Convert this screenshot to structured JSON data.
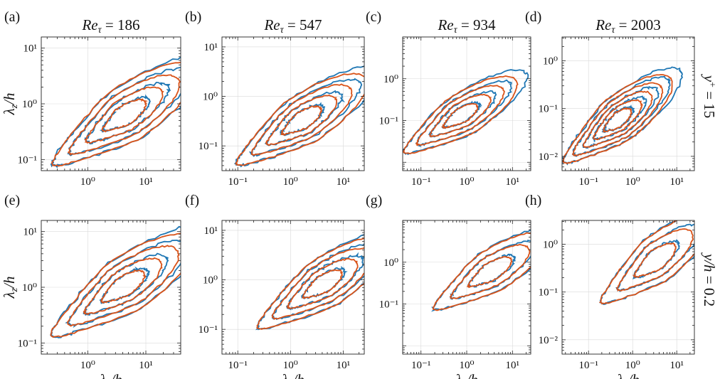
{
  "chart_data": {
    "type": "contour",
    "colors": {
      "blue": "#1f77b4",
      "orange": "#d95319"
    },
    "column_titles": [
      "Reτ = 186",
      "Reτ = 547",
      "Reτ = 934",
      "Reτ = 2003"
    ],
    "column_titles_parts": [
      {
        "main": "Re",
        "sub": "τ",
        "value": " = 186"
      },
      {
        "main": "Re",
        "sub": "τ",
        "value": " = 547"
      },
      {
        "main": "Re",
        "sub": "τ",
        "value": " = 934"
      },
      {
        "main": "Re",
        "sub": "τ",
        "value": " = 2003"
      }
    ],
    "row_labels": [
      {
        "main": "y",
        "sup": "+",
        "value": " = 15"
      },
      {
        "main": "y",
        "mid": "/h",
        "value": " = 0.2"
      }
    ],
    "xlabel": {
      "main": "λ",
      "sub": "x",
      "rest": "/h"
    },
    "ylabel": {
      "main": "λ",
      "sub": "z",
      "rest": "/h"
    },
    "panels": [
      {
        "label": "(a)",
        "xlim_log": [
          -0.8,
          1.6
        ],
        "ylim_log": [
          -1.2,
          1.2
        ],
        "xticks": [
          {
            "v": 0,
            "t": "10⁰"
          },
          {
            "v": 1,
            "t": "10¹"
          }
        ],
        "yticks": [
          {
            "v": -1,
            "t": "10⁻¹"
          },
          {
            "v": 0,
            "t": "10⁰"
          },
          {
            "v": 1,
            "t": "10¹"
          }
        ],
        "center": [
          0.62,
          -0.22
        ],
        "nlevels": 4
      },
      {
        "label": "(b)",
        "xlim_log": [
          -1.3,
          1.4
        ],
        "ylim_log": [
          -1.5,
          1.2
        ],
        "xticks": [
          {
            "v": -1,
            "t": "10⁻¹"
          },
          {
            "v": 0,
            "t": "10⁰"
          },
          {
            "v": 1,
            "t": "10¹"
          }
        ],
        "yticks": [
          {
            "v": -1,
            "t": "10⁻¹"
          },
          {
            "v": 0,
            "t": "10⁰"
          },
          {
            "v": 1,
            "t": "10¹"
          }
        ],
        "center": [
          0.2,
          -0.5
        ],
        "nlevels": 4
      },
      {
        "label": "(c)",
        "xlim_log": [
          -1.4,
          1.4
        ],
        "ylim_log": [
          -2.2,
          1.0
        ],
        "xticks": [
          {
            "v": -1,
            "t": "10⁻¹"
          },
          {
            "v": 0,
            "t": "10⁰"
          },
          {
            "v": 1,
            "t": "10¹"
          }
        ],
        "yticks": [
          {
            "v": -1,
            "t": "10⁻¹"
          },
          {
            "v": 0,
            "t": "10⁰"
          }
        ],
        "center": [
          -0.15,
          -0.9
        ],
        "nlevels": 4
      },
      {
        "label": "(d)",
        "xlim_log": [
          -1.6,
          1.4
        ],
        "ylim_log": [
          -2.3,
          0.5
        ],
        "xticks": [
          {
            "v": -1,
            "t": "10⁻¹"
          },
          {
            "v": 0,
            "t": "10⁰"
          },
          {
            "v": 1,
            "t": "10¹"
          }
        ],
        "yticks": [
          {
            "v": -2,
            "t": "10⁻²"
          },
          {
            "v": -1,
            "t": "10⁻¹"
          },
          {
            "v": 0,
            "t": "10⁰"
          }
        ],
        "center": [
          -0.35,
          -1.25
        ],
        "nlevels": 5
      },
      {
        "label": "(e)",
        "xlim_log": [
          -0.8,
          1.6
        ],
        "ylim_log": [
          -1.2,
          1.2
        ],
        "xticks": [
          {
            "v": 0,
            "t": "10⁰"
          },
          {
            "v": 1,
            "t": "10¹"
          }
        ],
        "yticks": [
          {
            "v": -1,
            "t": "10⁻¹"
          },
          {
            "v": 0,
            "t": "10⁰"
          },
          {
            "v": 1,
            "t": "10¹"
          }
        ],
        "center": [
          0.6,
          0.0
        ],
        "nlevels": 4
      },
      {
        "label": "(f)",
        "xlim_log": [
          -1.3,
          1.4
        ],
        "ylim_log": [
          -1.5,
          1.2
        ],
        "xticks": [
          {
            "v": -1,
            "t": "10⁻¹"
          },
          {
            "v": 0,
            "t": "10⁰"
          },
          {
            "v": 1,
            "t": "10¹"
          }
        ],
        "yticks": [
          {
            "v": -1,
            "t": "10⁻¹"
          },
          {
            "v": 0,
            "t": "10⁰"
          },
          {
            "v": 1,
            "t": "10¹"
          }
        ],
        "center": [
          0.6,
          -0.1
        ],
        "nlevels": 4
      },
      {
        "label": "(g)",
        "xlim_log": [
          -1.4,
          1.4
        ],
        "ylim_log": [
          -2.2,
          1.0
        ],
        "xticks": [
          {
            "v": -1,
            "t": "10⁻¹"
          },
          {
            "v": 0,
            "t": "10⁰"
          },
          {
            "v": 1,
            "t": "10¹"
          }
        ],
        "yticks": [
          {
            "v": -1,
            "t": "10⁻¹"
          },
          {
            "v": 0,
            "t": "10⁰"
          }
        ],
        "center": [
          0.5,
          -0.25
        ],
        "nlevels": 3
      },
      {
        "label": "(h)",
        "xlim_log": [
          -1.6,
          1.4
        ],
        "ylim_log": [
          -2.3,
          0.5
        ],
        "xticks": [
          {
            "v": -1,
            "t": "10⁻¹"
          },
          {
            "v": 0,
            "t": "10⁰"
          },
          {
            "v": 1,
            "t": "10¹"
          }
        ],
        "yticks": [
          {
            "v": -2,
            "t": "10⁻²"
          },
          {
            "v": -1,
            "t": "10⁻¹"
          },
          {
            "v": 0,
            "t": "10⁰"
          }
        ],
        "center": [
          0.5,
          -0.35
        ],
        "nlevels": 3
      }
    ]
  }
}
